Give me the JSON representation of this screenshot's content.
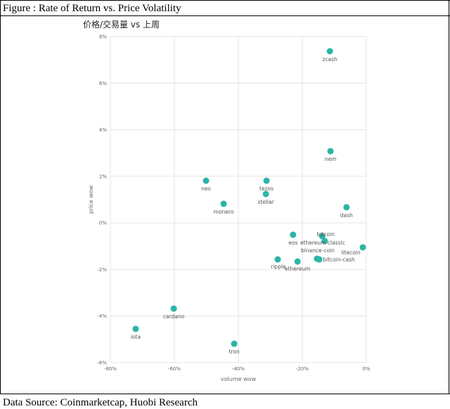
{
  "figure_title": "Figure : Rate of Return vs. Price Volatility",
  "source": "Data Source: Coinmarketcap, Huobi Research",
  "chart_data": {
    "type": "scatter",
    "title": "价格/交易量 vs 上周",
    "x_label": "volume wow",
    "y_label": "price wow",
    "color": "#2bb5a6",
    "grid": true,
    "xlim": [
      -80,
      0
    ],
    "ylim": [
      -6,
      8
    ],
    "xticks": [
      {
        "value": -80,
        "label": "-80%"
      },
      {
        "value": -60,
        "label": "-60%"
      },
      {
        "value": -40,
        "label": "-40%"
      },
      {
        "value": -20,
        "label": "-20%"
      },
      {
        "value": 0,
        "label": "0%"
      }
    ],
    "yticks": [
      {
        "value": -6,
        "label": "-6%"
      },
      {
        "value": -4,
        "label": "-4%"
      },
      {
        "value": -2,
        "label": "-2%"
      },
      {
        "value": 0,
        "label": "0%"
      },
      {
        "value": 2,
        "label": "2%"
      },
      {
        "value": 4,
        "label": "4%"
      },
      {
        "value": 6,
        "label": "6%"
      },
      {
        "value": 8,
        "label": "8%"
      }
    ],
    "labels": [
      "zcash",
      "nem",
      "dash",
      "neo",
      "tezos",
      "stellar",
      "monero",
      "eos",
      "bitcoin",
      "ethereum classic",
      "litecoin",
      "binance-coin",
      "bitcoin-cash",
      "ripple",
      "ethereum",
      "cardano",
      "iota",
      "tron"
    ],
    "x": [
      -11.4,
      -11.2,
      -6.2,
      -50.1,
      -31.2,
      -31.4,
      -44.6,
      -22.9,
      -13.8,
      -13.0,
      -1.1,
      -15.4,
      -14.7,
      -27.7,
      -21.5,
      -60.2,
      -72.1,
      -41.3
    ],
    "y": [
      7.37,
      3.08,
      0.67,
      1.81,
      1.81,
      1.24,
      0.82,
      -0.51,
      -0.57,
      -0.78,
      -1.05,
      -1.54,
      -1.57,
      -1.57,
      -1.66,
      -3.68,
      -4.55,
      -5.19
    ]
  }
}
